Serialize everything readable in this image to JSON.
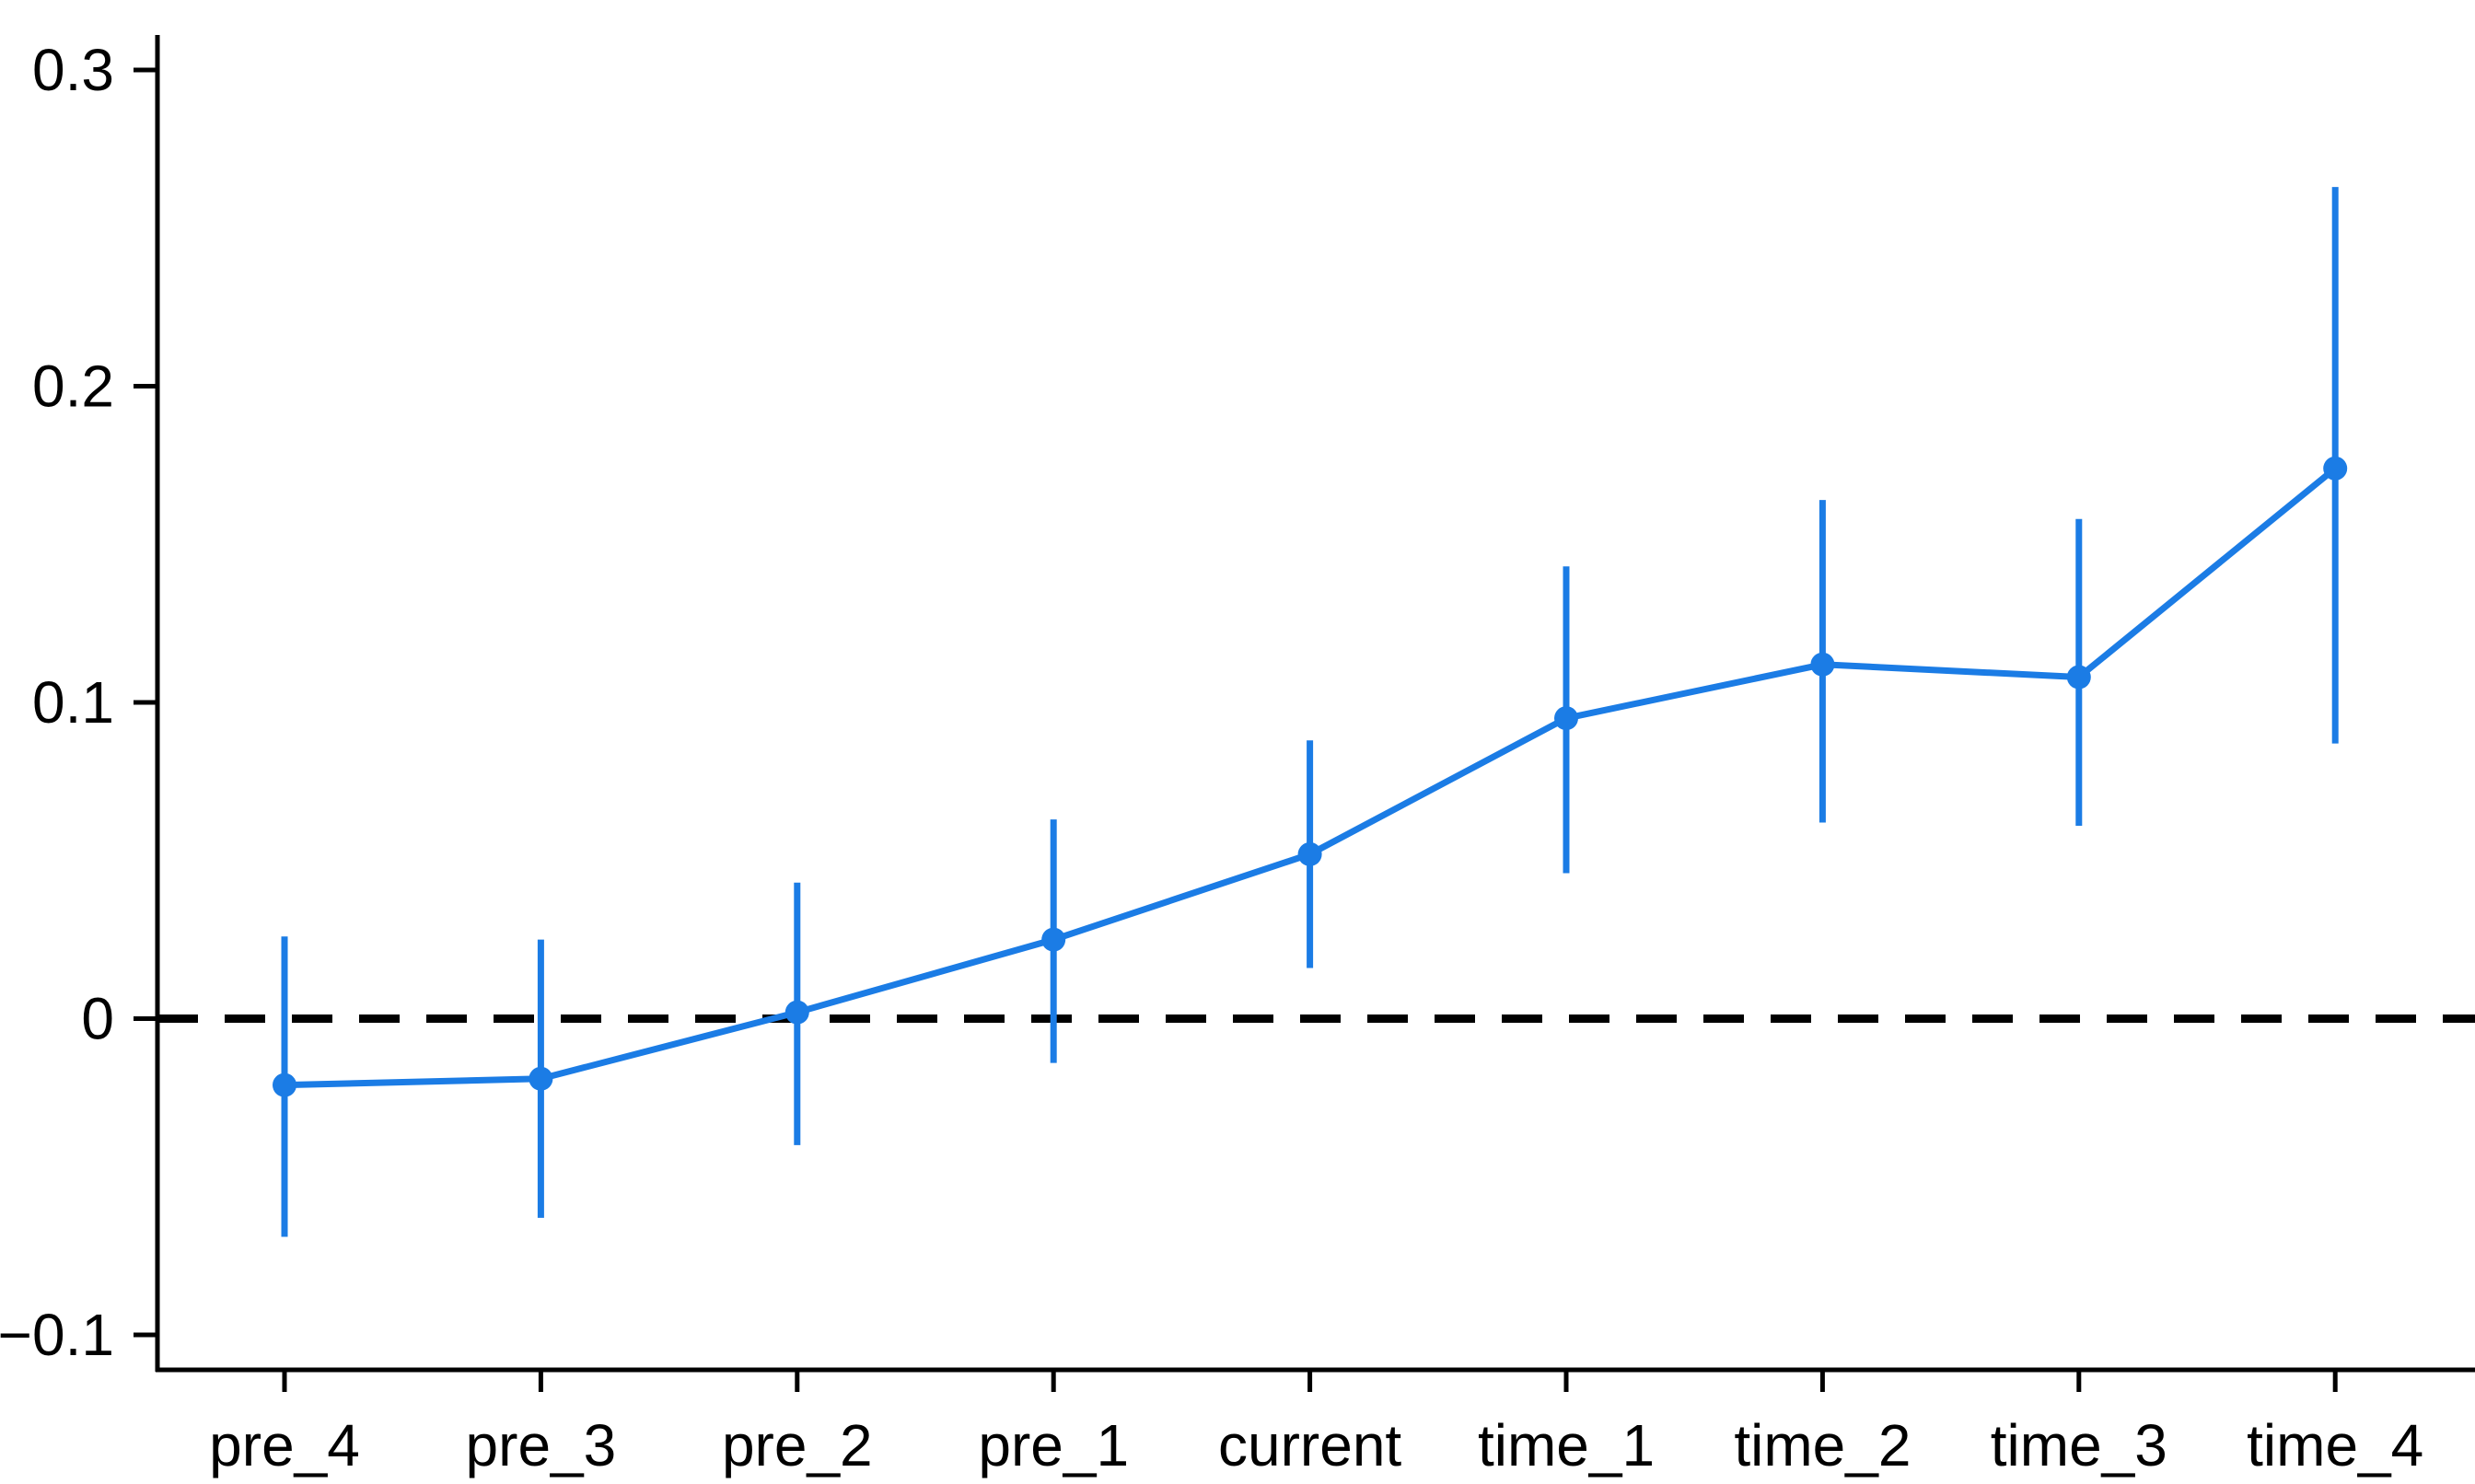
{
  "chart_data": {
    "type": "line",
    "subtype": "event-study-coefficient-plot-with-error-bars",
    "title": "",
    "xlabel": "",
    "ylabel": "",
    "categories": [
      "pre_4",
      "pre_3",
      "pre_2",
      "pre_1",
      "current",
      "time_1",
      "time_2",
      "time_3",
      "time_4"
    ],
    "series": [
      {
        "name": "coefficient",
        "values": [
          -0.021,
          -0.019,
          0.002,
          0.025,
          0.052,
          0.095,
          0.112,
          0.108,
          0.174
        ],
        "ci_low": [
          -0.069,
          -0.063,
          -0.04,
          -0.014,
          0.016,
          0.046,
          0.062,
          0.061,
          0.087
        ],
        "ci_high": [
          0.026,
          0.025,
          0.043,
          0.063,
          0.088,
          0.143,
          0.164,
          0.158,
          0.263
        ]
      }
    ],
    "y_ticks": [
      -0.1,
      0,
      0.1,
      0.2,
      0.3
    ],
    "y_tick_labels": [
      "−0.1",
      "0",
      "0.1",
      "0.2",
      "0.3"
    ],
    "ylim": [
      -0.131,
      0.311
    ],
    "reference_line_y": 0,
    "reference_line_style": "dashed",
    "grid": false,
    "legend": "none",
    "colors": {
      "series": "#1B7CE5",
      "reference_line": "#000000",
      "axis": "#000000",
      "tick_label": "#000000",
      "background": "#FFFFFF"
    }
  }
}
